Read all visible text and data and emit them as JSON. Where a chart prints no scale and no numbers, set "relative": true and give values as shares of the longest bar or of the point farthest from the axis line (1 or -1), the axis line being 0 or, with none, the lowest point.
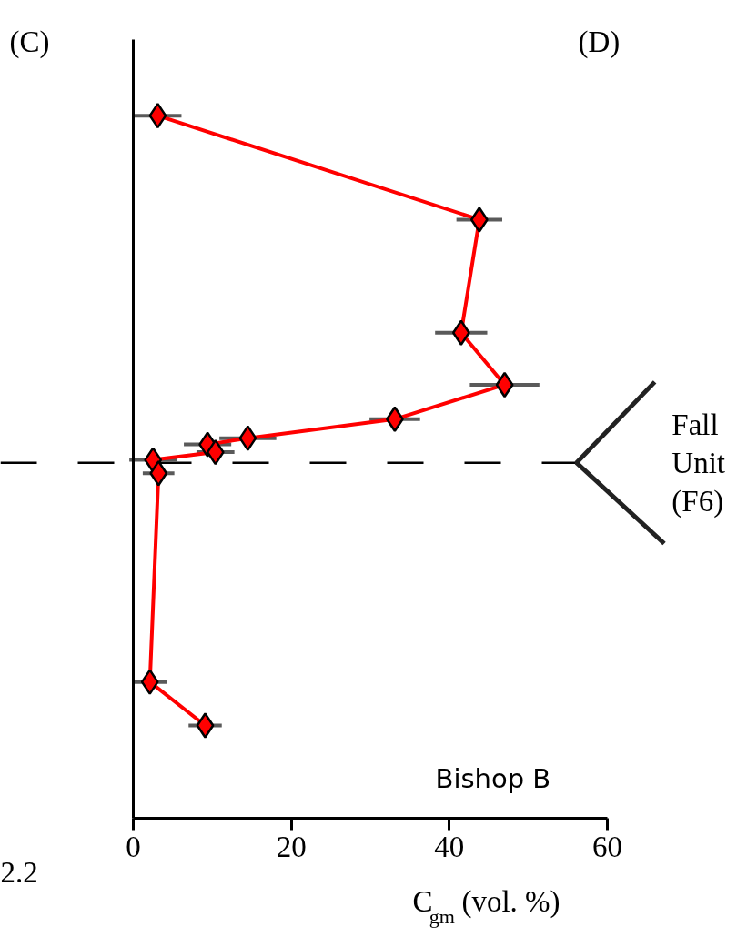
{
  "chart_data": {
    "type": "line",
    "xlabel": "C$_{gm}$ (vol. %)",
    "x": [
      3.1,
      43.8,
      41.5,
      47.0,
      33.1,
      14.5,
      9.4,
      10.4,
      2.5,
      3.2,
      2.1,
      9.1
    ],
    "values": [
      1.0,
      0.852,
      0.691,
      0.617,
      0.568,
      0.541,
      0.532,
      0.521,
      0.51,
      0.491,
      0.194,
      0.132
    ],
    "xerrors": [
      3.0,
      2.9,
      3.3,
      4.4,
      3.2,
      3.6,
      3.0,
      2.4,
      3.0,
      2.0,
      2.2,
      2.1
    ],
    "relative": true,
    "color": "#ff0000",
    "marker": "diamond",
    "line_style": "solid",
    "xlim": [
      0,
      60
    ],
    "xticks": [
      0,
      20,
      40,
      60
    ],
    "ref_lines": [
      {
        "axis": "y",
        "value": 0.506,
        "label": "Fall Unit (F6)",
        "line_style": "dashed",
        "color": "#000000"
      }
    ],
    "annotations": [
      "(C)",
      "(D)",
      "2.2",
      "Bishop B"
    ]
  }
}
